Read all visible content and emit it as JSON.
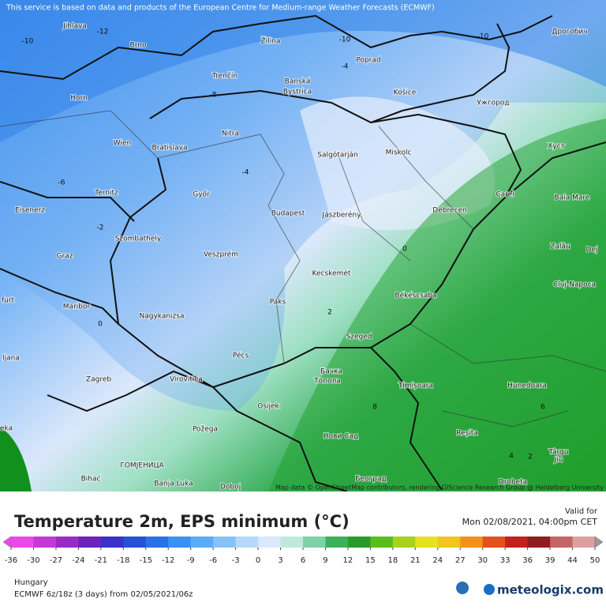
{
  "header": {
    "notice": "This service is based on data and products of the European Centre for Medium-range Weather Forecasts (ECMWF)"
  },
  "map": {
    "attribution": "Map data © OpenStreetMap contributors, rendering GIScience Research Group @ Heidelberg University",
    "cities": [
      "Jihlava",
      "Brno",
      "Žilina",
      "Poprad",
      "Дрогобич",
      "Trenčín",
      "Banská",
      "Bystrica",
      "Košice",
      "Ужгород",
      "Horn",
      "Nitra",
      "Wien",
      "Bratislava",
      "Salgótarján",
      "Miskolc",
      "Хуст",
      "Győr",
      "Carei",
      "Baia Mare",
      "Ternitz",
      "Eisenerz",
      "Budapest",
      "Jászberény",
      "Debrecen",
      "Szombathely",
      "Zalău",
      "Graz",
      "Veszprém",
      "Dej",
      "Kecskemét",
      "Cluj-Napoca",
      "Békéscsaba",
      "Paks",
      "Maribor",
      "Nagykanizsa",
      "Szeged",
      "Pécs",
      "Бачка",
      "Топола",
      "Zagreb",
      "Virovitica",
      "Timișoara",
      "Hunedoara",
      "Osijek",
      "Нови Сад",
      "Reșita",
      "Požega",
      "Târgu",
      "Jiu",
      "ГОМЈЕНИЦА",
      "Београд",
      "Bihać",
      "Banja Luka",
      "Doboj",
      "Drobeta",
      "ljana",
      "eka",
      "furt"
    ],
    "contour_labels": [
      -12,
      -10,
      -10,
      -10,
      -8,
      -6,
      -4,
      -4,
      -2,
      0,
      0,
      2,
      8,
      6,
      4,
      2
    ]
  },
  "legend": {
    "title": "Temperature 2m, EPS minimum (°C)",
    "ticks": [
      -36,
      -30,
      -27,
      -24,
      -21,
      -18,
      -15,
      -12,
      -9,
      -6,
      -3,
      0,
      3,
      6,
      9,
      12,
      15,
      18,
      21,
      24,
      27,
      30,
      33,
      36,
      39,
      44,
      50
    ],
    "colors": [
      "#e84ae8",
      "#c13ad6",
      "#9a2cc4",
      "#6a24b8",
      "#3a32c4",
      "#2452d2",
      "#2a72e2",
      "#3a92f0",
      "#5aacf6",
      "#86c2f8",
      "#b6d8fa",
      "#dce8fc",
      "#bfeadb",
      "#7cd2a6",
      "#3cb05a",
      "#2a9a2a",
      "#58be20",
      "#a8d21e",
      "#e6e21e",
      "#f2c41e",
      "#f0921e",
      "#e0521e",
      "#c0221e",
      "#8e1e1e",
      "#c26666",
      "#dca0a0"
    ]
  },
  "footer": {
    "valid_label": "Valid for",
    "valid_time": "Mon 02/08/2021, 04:00pm CET",
    "region": "Hungary",
    "model": "ECMWF 6z/18z (3 days) from 02/05/2021/06z",
    "brand": "meteologix.com"
  }
}
